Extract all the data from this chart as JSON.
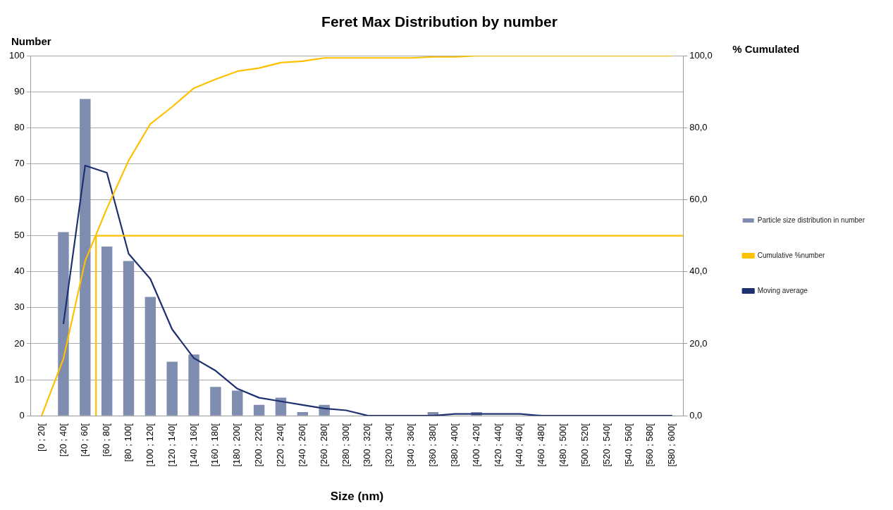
{
  "chart_data": {
    "type": "bar",
    "title": "Feret Max Distribution by number",
    "xlabel": "Size (nm)",
    "ylabel": "Number",
    "y2label": "% Cumulated",
    "categories": [
      "[0 ; 20[",
      "[20 ; 40[",
      "[40 ; 60[",
      "[60 ; 80[",
      "[80 ; 100[",
      "[100 ; 120[",
      "[120 ; 140[",
      "[140 ; 160[",
      "[160 ; 180[",
      "[180 ; 200[",
      "[200 ; 220[",
      "[220 ; 240[",
      "[240 ; 260[",
      "[260 ; 280[",
      "[280 ; 300[",
      "[300 ; 320[",
      "[320 ; 340[",
      "[340 ; 360[",
      "[360 ; 380[",
      "[380 ; 400[",
      "[400 ; 420[",
      "[420 ; 440[",
      "[440 ; 460[",
      "[460 ; 480[",
      "[480 ; 500[",
      "[500 ; 520[",
      "[520 ; 540[",
      "[540 ; 560[",
      "[560 ; 580[",
      "[580 ; 600["
    ],
    "series": [
      {
        "name": "Particle size distribution in number",
        "color": "#7f8db0",
        "values": [
          0,
          51,
          88,
          47,
          43,
          33,
          15,
          17,
          8,
          7,
          3,
          5,
          1,
          3,
          0,
          0,
          0,
          0,
          1,
          0,
          1,
          0,
          0,
          0,
          0,
          0,
          0,
          0,
          0,
          0
        ]
      },
      {
        "name": "Cumulative %number",
        "type": "line",
        "axis": "y2",
        "color": "#ffc000",
        "values": [
          0,
          15.8,
          43.0,
          57.6,
          70.9,
          81.1,
          85.8,
          91.0,
          93.5,
          95.7,
          96.6,
          98.1,
          98.5,
          99.4,
          99.4,
          99.4,
          99.4,
          99.4,
          99.7,
          99.7,
          100,
          100,
          100,
          100,
          100,
          100,
          100,
          100,
          100,
          100
        ]
      },
      {
        "name": "Moving average",
        "type": "line",
        "color": "#1f3070",
        "values": [
          null,
          25.5,
          69.5,
          67.5,
          45,
          38,
          24,
          16,
          12.5,
          7.5,
          5,
          4,
          3,
          2,
          1.5,
          0,
          0,
          0,
          0,
          0.5,
          0.5,
          0.5,
          0.5,
          0,
          0,
          0,
          0,
          0,
          0,
          0
        ]
      }
    ],
    "ylim": [
      0,
      100
    ],
    "yticks": [
      0,
      10,
      20,
      30,
      40,
      50,
      60,
      70,
      80,
      90,
      100
    ],
    "y2lim": [
      0,
      100
    ],
    "y2ticks": [
      {
        "value": 0,
        "label": "0,0"
      },
      {
        "value": 20,
        "label": "20,0"
      },
      {
        "value": 40,
        "label": "40,0"
      },
      {
        "value": 60,
        "label": "60,0"
      },
      {
        "value": 80,
        "label": "80,0"
      },
      {
        "value": 100,
        "label": "100,0"
      }
    ],
    "ref_lines": [
      {
        "axis": "y2",
        "value": 50,
        "color": "#ffc000"
      },
      {
        "axis": "x",
        "value": "[60 ; 80[",
        "color": "#ffc000"
      }
    ],
    "grid": "y",
    "legend": "right",
    "marker": "none"
  }
}
